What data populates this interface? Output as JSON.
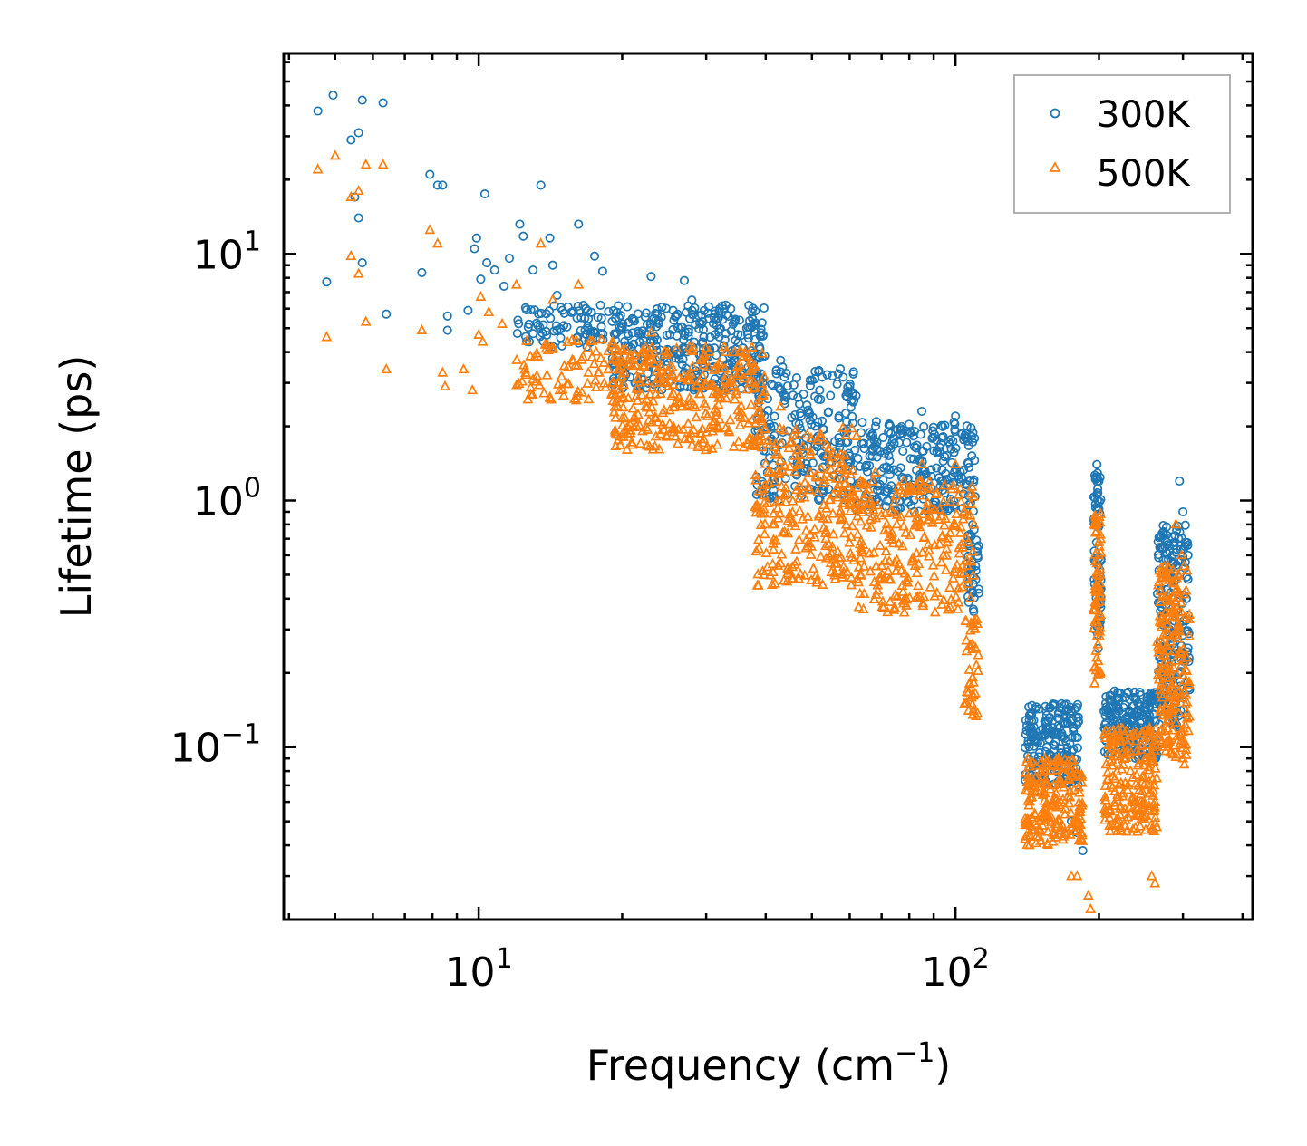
{
  "chart_data": {
    "type": "scatter",
    "xscale": "log",
    "yscale": "log",
    "xlim": [
      3.9,
      420
    ],
    "ylim": [
      0.02,
      65
    ],
    "xlabel": {
      "main": "Frequency (cm",
      "sup": "−1",
      "tail": ")"
    },
    "ylabel": "Lifetime (ps)",
    "x_ticks": [
      {
        "value": 10,
        "base": "10",
        "exp": "1"
      },
      {
        "value": 100,
        "base": "10",
        "exp": "2"
      }
    ],
    "y_ticks": [
      {
        "value": 0.1,
        "base": "10",
        "exp": "−1"
      },
      {
        "value": 1,
        "base": "10",
        "exp": "0"
      },
      {
        "value": 10,
        "base": "10",
        "exp": "1"
      }
    ],
    "legend": {
      "position": "top-right",
      "entries": [
        "300K",
        "500K"
      ]
    },
    "series": [
      {
        "name": "300K",
        "marker": "circle",
        "color": "#1f77b4",
        "points": [
          [
            4.6,
            38
          ],
          [
            4.95,
            44
          ],
          [
            5.4,
            29
          ],
          [
            5.6,
            31
          ],
          [
            5.7,
            42
          ],
          [
            6.3,
            41
          ],
          [
            5.5,
            17
          ],
          [
            5.6,
            14
          ],
          [
            5.7,
            9.2
          ],
          [
            4.8,
            7.7
          ],
          [
            6.4,
            5.7
          ],
          [
            7.6,
            8.4
          ],
          [
            7.9,
            21
          ],
          [
            8.2,
            19
          ],
          [
            8.4,
            19
          ],
          [
            8.6,
            5.6
          ],
          [
            8.6,
            4.9
          ],
          [
            9.5,
            5.9
          ],
          [
            9.8,
            10.5
          ],
          [
            9.9,
            11.6
          ],
          [
            10.1,
            7.9
          ],
          [
            10.3,
            17.5
          ],
          [
            10.4,
            9.2
          ],
          [
            10.8,
            8.6
          ],
          [
            11.3,
            7.4
          ],
          [
            11.6,
            9.6
          ],
          [
            12.2,
            13.2
          ],
          [
            12.4,
            11.8
          ],
          [
            13.5,
            19
          ],
          [
            13.0,
            8.6
          ],
          [
            14.1,
            11.6
          ],
          [
            14.3,
            9
          ],
          [
            14.6,
            6.8
          ],
          [
            16.2,
            13.2
          ],
          [
            17.5,
            9.8
          ],
          [
            18.2,
            8.5
          ],
          [
            23,
            8.1
          ],
          [
            27,
            7.8
          ],
          [
            28,
            6.5
          ],
          [
            33,
            6.2
          ],
          [
            38,
            4.5
          ],
          [
            43,
            3.7
          ],
          [
            48,
            2.7
          ],
          [
            57,
            2.2
          ],
          [
            68,
            2.0
          ],
          [
            85,
            2.3
          ],
          [
            100,
            2.2
          ],
          [
            155,
            0.14
          ],
          [
            160,
            0.12
          ],
          [
            165,
            0.13
          ],
          [
            168,
            0.11
          ],
          [
            175,
            0.05
          ],
          [
            180,
            0.045
          ],
          [
            185,
            0.038
          ],
          [
            198,
            1.4
          ],
          [
            200,
            1.2
          ],
          [
            205,
            0.14
          ],
          [
            213,
            0.12
          ],
          [
            220,
            0.14
          ],
          [
            235,
            0.13
          ],
          [
            250,
            0.12
          ],
          [
            260,
            0.16
          ],
          [
            280,
            0.3
          ],
          [
            285,
            0.6
          ],
          [
            295,
            1.2
          ],
          [
            300,
            0.9
          ],
          [
            305,
            0.4
          ]
        ],
        "bands": [
          {
            "x": [
              12,
              20
            ],
            "y": [
              4.2,
              6.2
            ],
            "n": 90
          },
          {
            "x": [
              19,
              40
            ],
            "y": [
              2.8,
              6.2
            ],
            "n": 340
          },
          {
            "x": [
              38,
              62
            ],
            "y": [
              1.0,
              3.5
            ],
            "n": 240
          },
          {
            "x": [
              62,
              110
            ],
            "y": [
              0.9,
              2.1
            ],
            "n": 260
          },
          {
            "x": [
              106,
              112
            ],
            "y": [
              0.35,
              0.8
            ],
            "n": 40
          },
          {
            "x": [
              140,
              182
            ],
            "y": [
              0.07,
              0.15
            ],
            "n": 200
          },
          {
            "x": [
              195,
              202
            ],
            "y": [
              0.25,
              1.3
            ],
            "n": 70
          },
          {
            "x": [
              205,
              265
            ],
            "y": [
              0.09,
              0.17
            ],
            "n": 200
          },
          {
            "x": [
              265,
              310
            ],
            "y": [
              0.12,
              0.8
            ],
            "n": 200
          }
        ]
      },
      {
        "name": "500K",
        "marker": "triangle",
        "color": "#ff7f0e",
        "points": [
          [
            4.6,
            22
          ],
          [
            5.0,
            25
          ],
          [
            5.4,
            17
          ],
          [
            5.6,
            18
          ],
          [
            5.8,
            23
          ],
          [
            6.3,
            23
          ],
          [
            5.4,
            9.8
          ],
          [
            5.6,
            8.3
          ],
          [
            5.8,
            5.3
          ],
          [
            4.8,
            4.6
          ],
          [
            6.4,
            3.4
          ],
          [
            7.6,
            4.9
          ],
          [
            7.9,
            12.5
          ],
          [
            8.2,
            11
          ],
          [
            8.4,
            3.3
          ],
          [
            8.5,
            2.9
          ],
          [
            9.3,
            3.4
          ],
          [
            9.7,
            2.8
          ],
          [
            10,
            4.7
          ],
          [
            10.2,
            4.4
          ],
          [
            10.1,
            6.7
          ],
          [
            10.5,
            5.8
          ],
          [
            11.2,
            5.2
          ],
          [
            12.0,
            7.5
          ],
          [
            13.5,
            11
          ],
          [
            14.3,
            6.5
          ],
          [
            16.2,
            7.5
          ],
          [
            23,
            4.8
          ],
          [
            33,
            3.2
          ],
          [
            43,
            2.4
          ],
          [
            68,
            1.3
          ],
          [
            85,
            1.4
          ],
          [
            100,
            1.4
          ],
          [
            105,
            0.15
          ],
          [
            107,
            0.18
          ],
          [
            150,
            0.05
          ],
          [
            160,
            0.045
          ],
          [
            165,
            0.09
          ],
          [
            175,
            0.03
          ],
          [
            180,
            0.03
          ],
          [
            190,
            0.025
          ],
          [
            192,
            0.022
          ],
          [
            198,
            0.8
          ],
          [
            200,
            0.6
          ],
          [
            230,
            0.07
          ],
          [
            255,
            0.065
          ],
          [
            258,
            0.03
          ],
          [
            262,
            0.028
          ],
          [
            290,
            0.8
          ],
          [
            298,
            0.6
          ],
          [
            300,
            0.09
          ],
          [
            302,
            0.085
          ]
        ],
        "bands": [
          {
            "x": [
              12,
              20
            ],
            "y": [
              2.5,
              4.5
            ],
            "n": 90
          },
          {
            "x": [
              19,
              40
            ],
            "y": [
              1.6,
              4.2
            ],
            "n": 340
          },
          {
            "x": [
              38,
              62
            ],
            "y": [
              0.45,
              2.0
            ],
            "n": 260
          },
          {
            "x": [
              62,
              110
            ],
            "y": [
              0.35,
              1.2
            ],
            "n": 260
          },
          {
            "x": [
              104,
              112
            ],
            "y": [
              0.13,
              0.35
            ],
            "n": 40
          },
          {
            "x": [
              140,
              185
            ],
            "y": [
              0.04,
              0.09
            ],
            "n": 200
          },
          {
            "x": [
              195,
              202
            ],
            "y": [
              0.18,
              0.9
            ],
            "n": 70
          },
          {
            "x": [
              205,
              265
            ],
            "y": [
              0.045,
              0.12
            ],
            "n": 200
          },
          {
            "x": [
              265,
              310
            ],
            "y": [
              0.09,
              0.55
            ],
            "n": 200
          }
        ]
      }
    ]
  }
}
